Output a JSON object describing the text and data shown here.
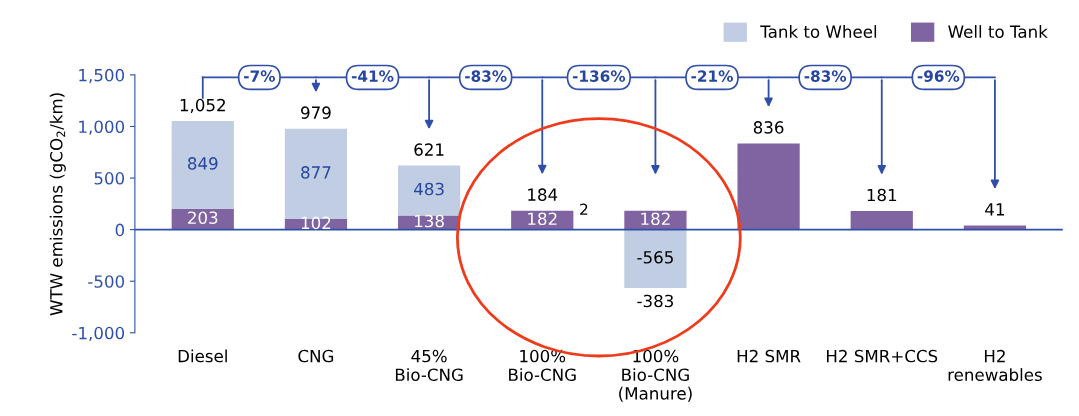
{
  "chart_data": {
    "type": "bar",
    "stacked": true,
    "ylabel": "WTW emissions (gCO$_{2}$/km)",
    "categories": [
      "Diesel",
      "CNG",
      "45%\nBio-CNG",
      "100%\nBio-CNG",
      "100%\nBio-CNG\n(Manure)",
      "H2 SMR",
      "H2 SMR+CCS",
      "H2\nrenewables"
    ],
    "series": [
      {
        "name": "Well to Tank",
        "color": "#8064a2",
        "values": [
          203,
          102,
          138,
          182,
          182,
          836,
          181,
          41
        ],
        "value_labels": [
          "203",
          "102",
          "138",
          "182",
          "182",
          null,
          null,
          null
        ]
      },
      {
        "name": "Tank to Wheel",
        "color": "#c0cde2",
        "values": [
          849,
          877,
          483,
          2,
          -565,
          0,
          0,
          0
        ],
        "value_labels": [
          "849",
          "877",
          "483",
          "2",
          "-565",
          null,
          null,
          null
        ]
      }
    ],
    "totals": [
      "1,052",
      "979",
      "621",
      "184",
      "-383",
      "836",
      "181",
      "41"
    ],
    "annotations": [
      "-7%",
      "-41%",
      "-83%",
      "-136%",
      "-21%",
      "-83%",
      "-96%"
    ],
    "ylim": [
      -1000,
      1500
    ],
    "yticks": [
      {
        "value": -1000,
        "label": "-1,000"
      },
      -500,
      0,
      500,
      {
        "value": 1000,
        "label": "1,000"
      },
      {
        "value": 1500,
        "label": "1,500"
      }
    ],
    "ref_lines": [
      {
        "axis": "y",
        "value": 0,
        "color": "#2f4fa8"
      }
    ],
    "legend": "top right",
    "grid": false
  }
}
